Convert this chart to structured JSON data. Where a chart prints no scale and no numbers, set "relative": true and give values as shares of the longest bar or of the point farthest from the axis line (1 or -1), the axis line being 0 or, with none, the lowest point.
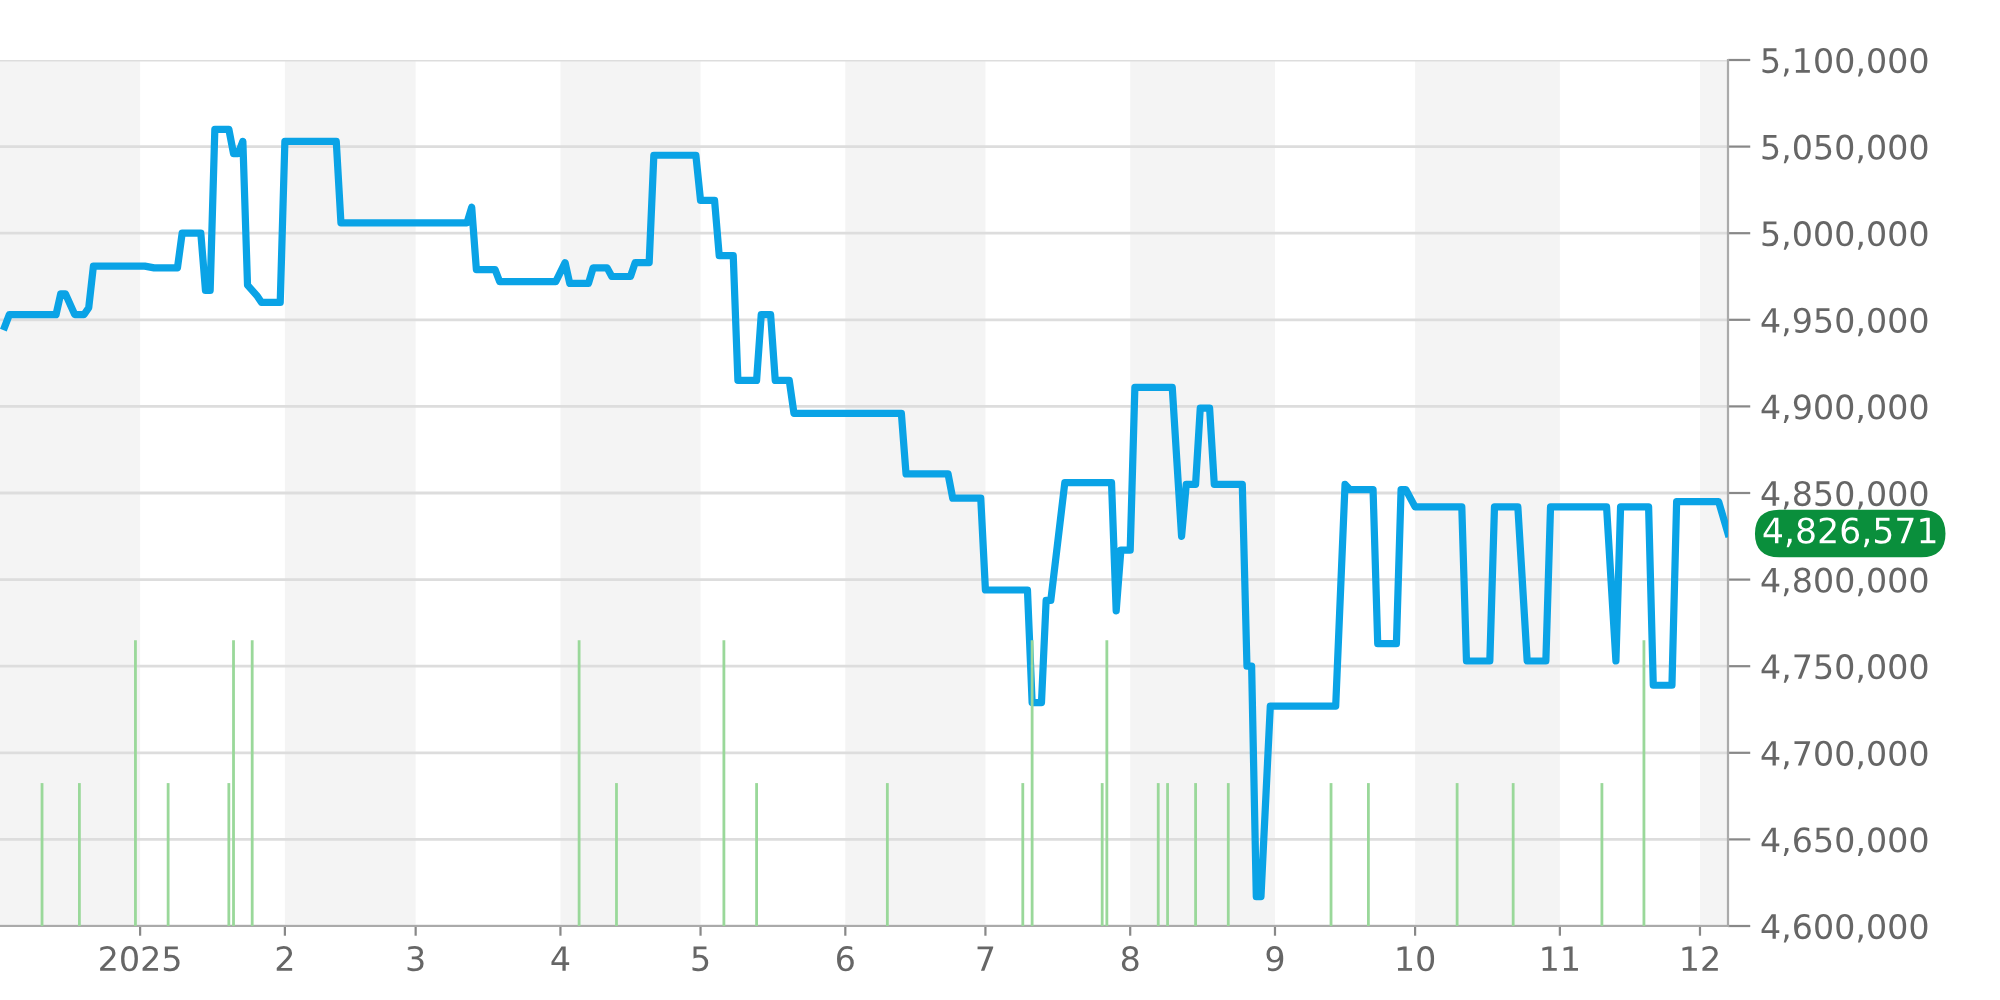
{
  "chart_data": [
    {
      "type": "line",
      "x": [
        "2024-12-03",
        "2024-12-04",
        "2024-12-14",
        "2024-12-15",
        "2024-12-16",
        "2024-12-18",
        "2024-12-20",
        "2024-12-21",
        "2024-12-22",
        "2025-01-02",
        "2025-01-04",
        "2025-01-09",
        "2025-01-10",
        "2025-01-14",
        "2025-01-15",
        "2025-01-16",
        "2025-01-17",
        "2025-01-20",
        "2025-01-21",
        "2025-01-22",
        "2025-01-23",
        "2025-01-24",
        "2025-01-25",
        "2025-01-26",
        "2025-01-27",
        "2025-01-31",
        "2025-02-01",
        "2025-02-12",
        "2025-02-13",
        "2025-03-12",
        "2025-03-13",
        "2025-03-14",
        "2025-03-18",
        "2025-03-19",
        "2025-03-31",
        "2025-04-02",
        "2025-04-03",
        "2025-04-07",
        "2025-04-08",
        "2025-04-11",
        "2025-04-12",
        "2025-04-16",
        "2025-04-17",
        "2025-04-20",
        "2025-04-21",
        "2025-04-30",
        "2025-05-01",
        "2025-05-04",
        "2025-05-05",
        "2025-05-08",
        "2025-05-09",
        "2025-05-13",
        "2025-05-14",
        "2025-05-16",
        "2025-05-17",
        "2025-05-20",
        "2025-05-21",
        "2025-06-13",
        "2025-06-14",
        "2025-06-23",
        "2025-06-24",
        "2025-06-30",
        "2025-07-01",
        "2025-07-10",
        "2025-07-11",
        "2025-07-13",
        "2025-07-14",
        "2025-07-15",
        "2025-07-18",
        "2025-07-28",
        "2025-07-29",
        "2025-07-30",
        "2025-08-01",
        "2025-08-02",
        "2025-08-10",
        "2025-08-12",
        "2025-08-13",
        "2025-08-15",
        "2025-08-16",
        "2025-08-18",
        "2025-08-19",
        "2025-08-25",
        "2025-08-26",
        "2025-08-27",
        "2025-08-28",
        "2025-08-29",
        "2025-08-31",
        "2025-09-14",
        "2025-09-16",
        "2025-09-17",
        "2025-09-22",
        "2025-09-23",
        "2025-09-27",
        "2025-09-28",
        "2025-09-29",
        "2025-10-01",
        "2025-10-11",
        "2025-10-12",
        "2025-10-17",
        "2025-10-18",
        "2025-10-23",
        "2025-10-25",
        "2025-10-29",
        "2025-10-30",
        "2025-11-11",
        "2025-11-13",
        "2025-11-14",
        "2025-11-20",
        "2025-11-21",
        "2025-11-25",
        "2025-11-26",
        "2025-12-05",
        "2025-12-07"
      ],
      "series": [
        {
          "color": "#0aa3e6",
          "values": [
            4946000,
            4953000,
            4953000,
            4965000,
            4965000,
            4953000,
            4953000,
            4957000,
            4981000,
            4981000,
            4980000,
            4980000,
            5000000,
            5000000,
            4967000,
            4967000,
            5060000,
            5060000,
            5046000,
            5046000,
            5053000,
            4970000,
            4967000,
            4964000,
            4960000,
            4960000,
            5053000,
            5053000,
            5006000,
            5006000,
            5015000,
            4979000,
            4979000,
            4972000,
            4972000,
            4983000,
            4971000,
            4971000,
            4980000,
            4980000,
            4975000,
            4975000,
            4983000,
            4983000,
            5045000,
            5045000,
            5019000,
            5019000,
            4987000,
            4987000,
            4915000,
            4915000,
            4953000,
            4953000,
            4915000,
            4915000,
            4896000,
            4896000,
            4861000,
            4861000,
            4847000,
            4847000,
            4794000,
            4794000,
            4729000,
            4729000,
            4788000,
            4788000,
            4856000,
            4856000,
            4782000,
            4817000,
            4817000,
            4911000,
            4911000,
            4825000,
            4855000,
            4855000,
            4899000,
            4899000,
            4855000,
            4855000,
            4750000,
            4750000,
            4617000,
            4617000,
            4727000,
            4727000,
            4855000,
            4852000,
            4852000,
            4763000,
            4763000,
            4852000,
            4852000,
            4842000,
            4842000,
            4753000,
            4753000,
            4842000,
            4842000,
            4753000,
            4753000,
            4842000,
            4842000,
            4753000,
            4842000,
            4842000,
            4739000,
            4739000,
            4845000,
            4845000,
            4826571
          ]
        }
      ],
      "xlim": [
        "2024-12-02",
        "2025-12-07"
      ],
      "xticks": [
        {
          "value": "2025-01-01",
          "label": "2025"
        },
        {
          "value": "2025-02-01",
          "label": "2"
        },
        {
          "value": "2025-03-01",
          "label": "3"
        },
        {
          "value": "2025-04-01",
          "label": "4"
        },
        {
          "value": "2025-05-01",
          "label": "5"
        },
        {
          "value": "2025-06-01",
          "label": "6"
        },
        {
          "value": "2025-07-01",
          "label": "7"
        },
        {
          "value": "2025-08-01",
          "label": "8"
        },
        {
          "value": "2025-09-01",
          "label": "9"
        },
        {
          "value": "2025-10-01",
          "label": "10"
        },
        {
          "value": "2025-11-01",
          "label": "11"
        },
        {
          "value": "2025-12-01",
          "label": "12"
        }
      ],
      "ylim": [
        4600000,
        5100000
      ],
      "yticks": [
        {
          "value": 4600000,
          "label": "4,600,000"
        },
        {
          "value": 4650000,
          "label": "4,650,000"
        },
        {
          "value": 4700000,
          "label": "4,700,000"
        },
        {
          "value": 4750000,
          "label": "4,750,000"
        },
        {
          "value": 4800000,
          "label": "4,800,000"
        },
        {
          "value": 4850000,
          "label": "4,850,000"
        },
        {
          "value": 4900000,
          "label": "4,900,000"
        },
        {
          "value": 4950000,
          "label": "4,950,000"
        },
        {
          "value": 5000000,
          "label": "5,000,000"
        },
        {
          "value": 5050000,
          "label": "5,050,000"
        },
        {
          "value": 5100000,
          "label": "5,100,000"
        }
      ],
      "grid": "y",
      "bands": [
        {
          "axis": "x",
          "from": "2024-12-02",
          "to": "2025-01-01",
          "color": "#f4f4f4"
        },
        {
          "axis": "x",
          "from": "2025-02-01",
          "to": "2025-03-01",
          "color": "#f4f4f4"
        },
        {
          "axis": "x",
          "from": "2025-04-01",
          "to": "2025-05-01",
          "color": "#f4f4f4"
        },
        {
          "axis": "x",
          "from": "2025-06-01",
          "to": "2025-07-01",
          "color": "#f4f4f4"
        },
        {
          "axis": "x",
          "from": "2025-08-01",
          "to": "2025-09-01",
          "color": "#f4f4f4"
        },
        {
          "axis": "x",
          "from": "2025-10-01",
          "to": "2025-11-01",
          "color": "#f4f4f4"
        },
        {
          "axis": "x",
          "from": "2025-12-01",
          "to": "2025-12-07",
          "color": "#f4f4f4"
        }
      ],
      "annotations": [
        {
          "text": "4,826,571",
          "x": "2025-12-07",
          "y": 4826571
        }
      ]
    },
    {
      "type": "bar",
      "relative": true,
      "tick_labels": false,
      "x": [
        "2024-12-11",
        "2024-12-19",
        "2024-12-31",
        "2025-01-07",
        "2025-01-20",
        "2025-01-21",
        "2025-01-25",
        "2025-04-05",
        "2025-04-13",
        "2025-05-06",
        "2025-05-13",
        "2025-06-10",
        "2025-07-09",
        "2025-07-11",
        "2025-07-26",
        "2025-07-27",
        "2025-08-07",
        "2025-08-09",
        "2025-08-15",
        "2025-08-22",
        "2025-09-13",
        "2025-09-21",
        "2025-10-10",
        "2025-10-22",
        "2025-11-10",
        "2025-11-19"
      ],
      "series": [
        {
          "color": "#9ad89a",
          "values": [
            0.5,
            0.5,
            1,
            0.5,
            0.5,
            1,
            1,
            1,
            0.5,
            1,
            0.5,
            0.5,
            0.5,
            1,
            0.5,
            1,
            0.5,
            0.5,
            0.5,
            0.5,
            0.5,
            0.5,
            0.5,
            0.5,
            0.5,
            1
          ]
        }
      ],
      "xlim": [
        "2024-12-02",
        "2025-12-07"
      ]
    }
  ]
}
